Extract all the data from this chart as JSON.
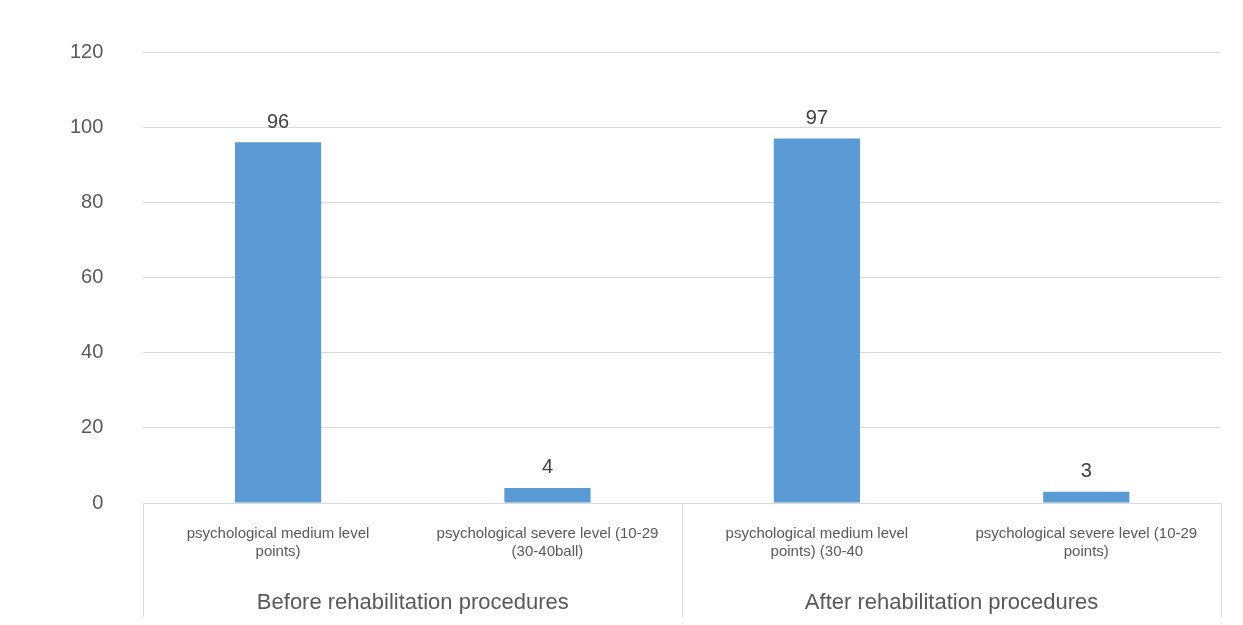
{
  "chart_data": {
    "type": "bar",
    "categories": [
      "psychological medium level\npoints)",
      "psychological severe level (10-29\n(30-40ball)",
      "psychological medium level\npoints) (30-40",
      "psychological severe level (10-29\npoints)"
    ],
    "values": [
      96,
      4,
      97,
      3
    ],
    "color": "#5b9bd5",
    "ylim": [
      0,
      120
    ],
    "yticks": [
      0,
      20,
      40,
      60,
      80,
      100,
      120
    ],
    "grid": "y",
    "data_labels": true,
    "annotations": [
      "Before rehabilitation procedures",
      "After rehabilitation procedures"
    ]
  }
}
